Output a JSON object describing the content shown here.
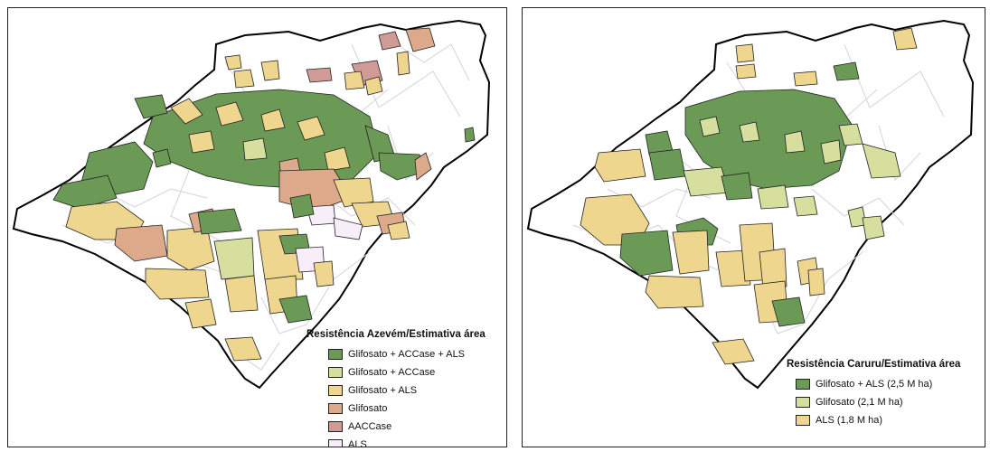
{
  "colors": {
    "gly_accase_als": "#6b9a56",
    "gly_accase": "#d6df9e",
    "gly_als": "#efd68f",
    "glifosato": "#dca98a",
    "accase": "#d09a95",
    "als": "#f8eefa",
    "gly_als_caruru": "#6b9a56",
    "gly_caruru": "#d6df9e",
    "als_caruru": "#efd68f"
  },
  "left_map": {
    "legend_title": "Resistência Azevém/Estimativa área",
    "legend": [
      {
        "label": "Glifosato + ACCase + ALS",
        "color": "#6b9a56"
      },
      {
        "label": "Glifosato + ACCase",
        "color": "#d6df9e"
      },
      {
        "label": "Glifosato + ALS",
        "color": "#efd68f"
      },
      {
        "label": "Glifosato",
        "color": "#dca98a"
      },
      {
        "label": "AACCase",
        "color": "#d09a95"
      },
      {
        "label": "ALS",
        "color": "#f8eefa"
      }
    ]
  },
  "right_map": {
    "legend_title": "Resistência Caruru/Estimativa área",
    "legend": [
      {
        "label": "Glifosato + ALS (2,5 M ha)",
        "color": "#6b9a56"
      },
      {
        "label": "Glifosato (2,1 M ha)",
        "color": "#d6df9e"
      },
      {
        "label": "ALS (1,8 M ha)",
        "color": "#efd68f"
      }
    ]
  }
}
